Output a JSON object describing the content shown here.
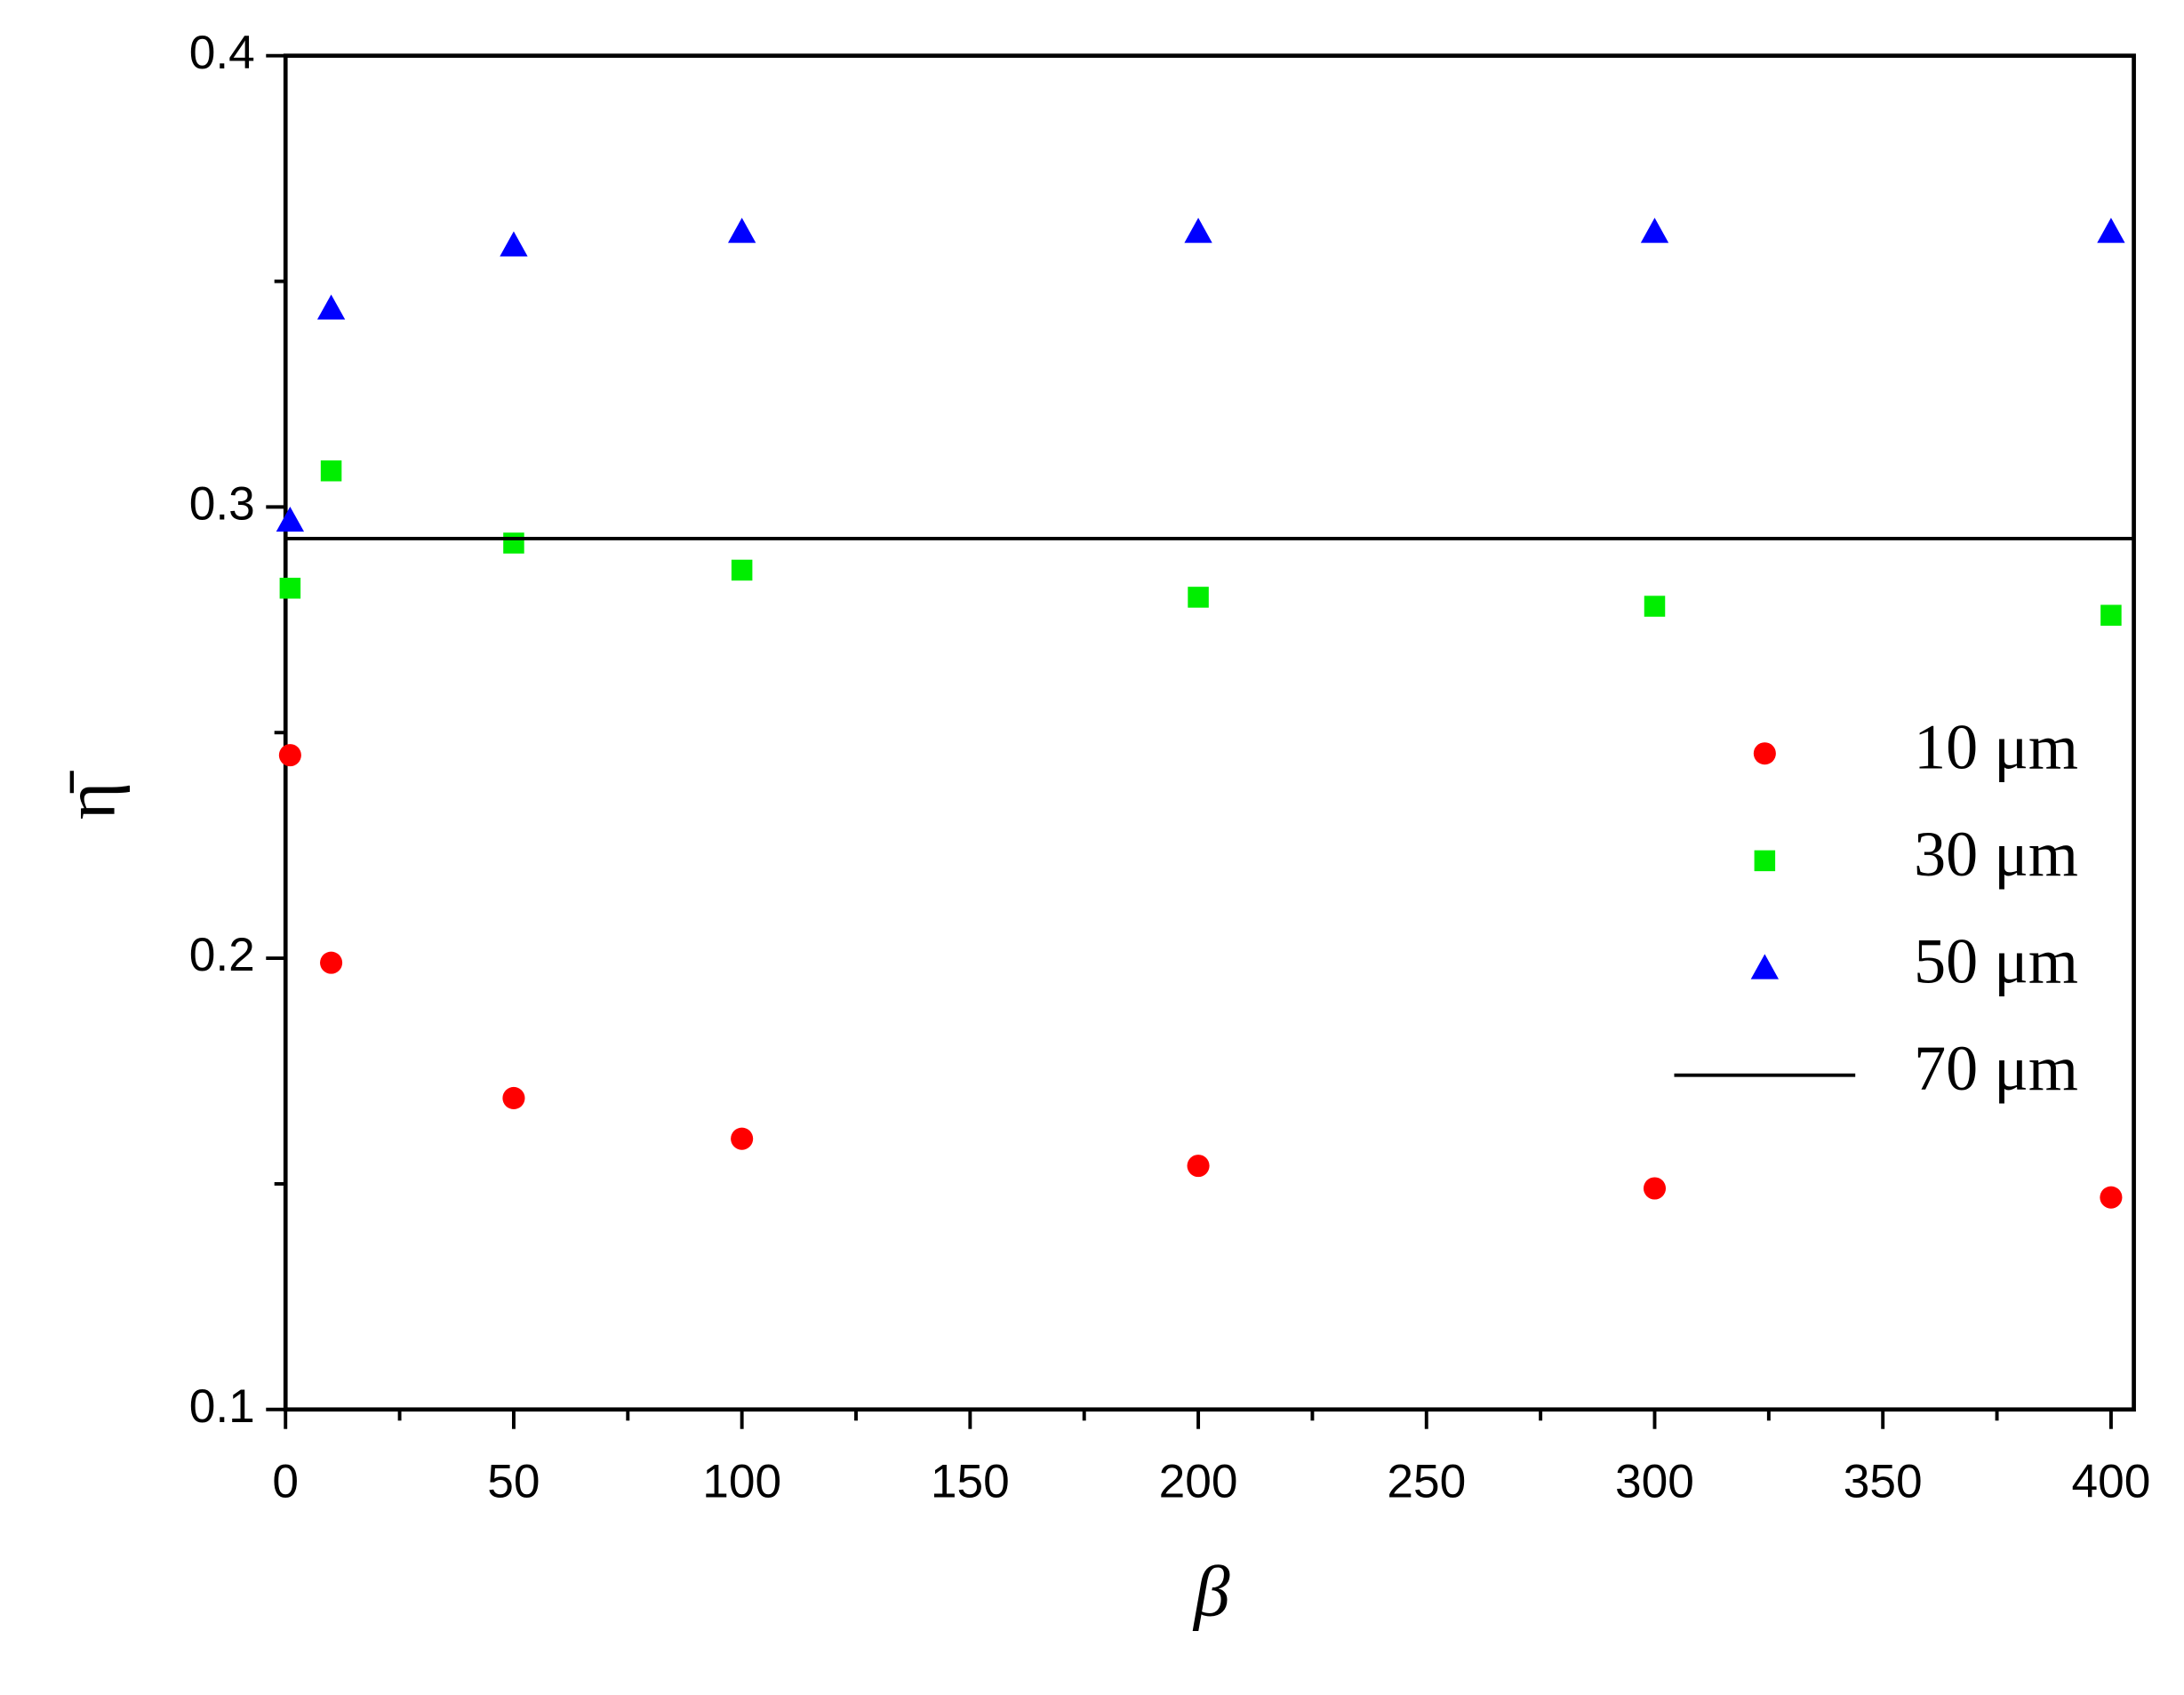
{
  "chart_data": {
    "type": "scatter",
    "xlabel": "β",
    "ylabel": "η̄",
    "xlim": [
      0,
      405
    ],
    "xticks": [
      0,
      50,
      100,
      150,
      200,
      250,
      300,
      350,
      400
    ],
    "ylim": [
      0.1,
      0.4
    ],
    "yticks": [
      0.1,
      0.2,
      0.3,
      0.4
    ],
    "legend": "right",
    "series": [
      {
        "name": "10 μm",
        "color": "#ff0000",
        "marker": "circle",
        "x": [
          1,
          10,
          50,
          100,
          200,
          300,
          400
        ],
        "values": [
          0.245,
          0.199,
          0.169,
          0.16,
          0.154,
          0.149,
          0.147
        ]
      },
      {
        "name": "30 μm",
        "color": "#00ee00",
        "marker": "square",
        "x": [
          1,
          10,
          50,
          100,
          200,
          300,
          400
        ],
        "values": [
          0.282,
          0.308,
          0.292,
          0.286,
          0.28,
          0.278,
          0.276
        ]
      },
      {
        "name": "50 μm",
        "color": "#0000ff",
        "marker": "triangle",
        "x": [
          1,
          10,
          50,
          100,
          200,
          300,
          400
        ],
        "values": [
          0.297,
          0.344,
          0.358,
          0.361,
          0.361,
          0.361,
          0.361
        ]
      },
      {
        "name": "70 μm",
        "color": "#000000",
        "marker": "line",
        "x": [
          0,
          405
        ],
        "values": [
          0.293,
          0.293
        ]
      }
    ]
  }
}
